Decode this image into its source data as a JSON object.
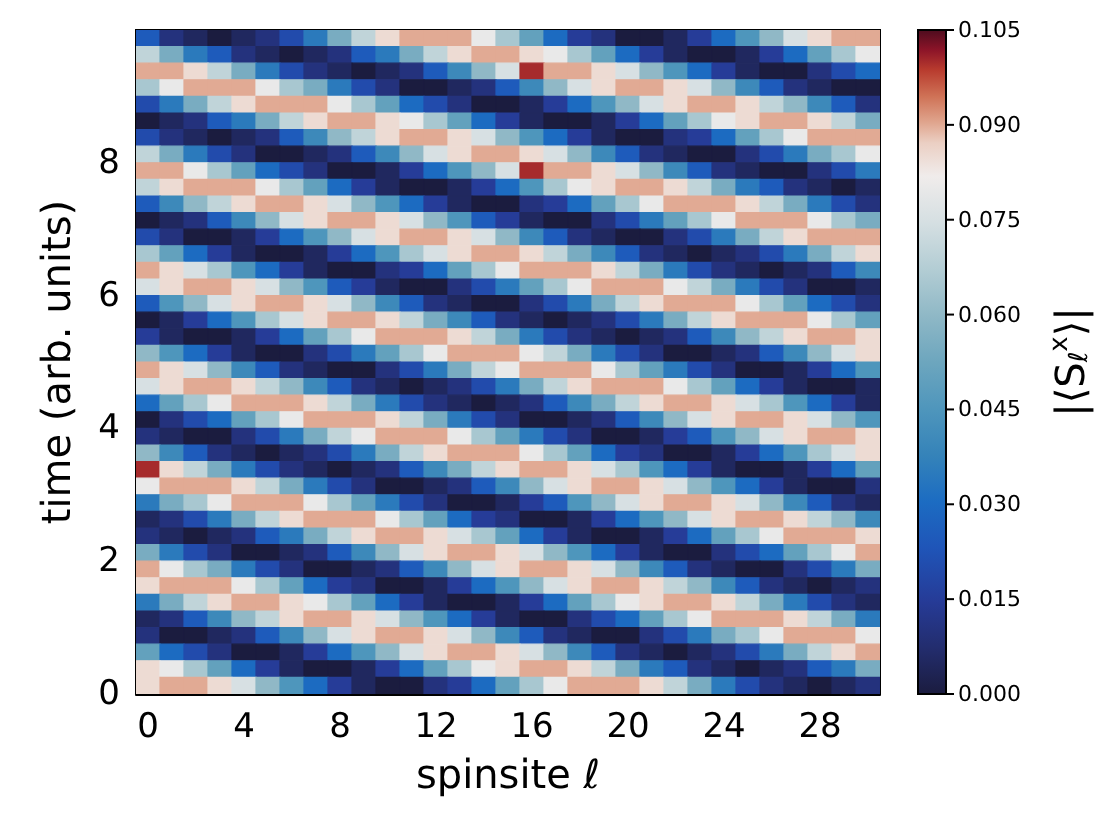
{
  "chart_data": {
    "type": "heatmap",
    "xlabel": "spinsite ℓ",
    "ylabel": "time (arb. units)",
    "clabel": "|⟨S$_{ℓ}$$^{x}$⟩|",
    "x": [
      0,
      1,
      2,
      3,
      4,
      5,
      6,
      7,
      8,
      9,
      10,
      11,
      12,
      13,
      14,
      15,
      16,
      17,
      18,
      19,
      20,
      21,
      22,
      23,
      24,
      25,
      26,
      27,
      28,
      29,
      30
    ],
    "y": [
      9.875,
      9.625,
      9.375,
      9.125,
      8.875,
      8.625,
      8.375,
      8.125,
      7.875,
      7.625,
      7.375,
      7.125,
      6.875,
      6.625,
      6.375,
      6.125,
      5.875,
      5.625,
      5.375,
      5.125,
      4.875,
      4.625,
      4.375,
      4.125,
      3.875,
      3.625,
      3.375,
      3.125,
      2.875,
      2.625,
      2.375,
      2.125,
      1.875,
      1.625,
      1.375,
      1.125,
      0.875,
      0.625,
      0.375,
      0.125
    ],
    "xlim": [
      -0.5,
      30.5
    ],
    "ylim": [
      0,
      10
    ],
    "xticks": [
      0,
      4,
      8,
      12,
      16,
      20,
      24,
      28
    ],
    "yticks": [
      0,
      2,
      4,
      6,
      8
    ],
    "clim": [
      0,
      0.105
    ],
    "cticks": [
      {
        "value": 0,
        "label": "0.000"
      },
      {
        "value": 0.015,
        "label": "0.015"
      },
      {
        "value": 0.03,
        "label": "0.030"
      },
      {
        "value": 0.045,
        "label": "0.045"
      },
      {
        "value": 0.06,
        "label": "0.060"
      },
      {
        "value": 0.075,
        "label": "0.075"
      },
      {
        "value": 0.09,
        "label": "0.090"
      },
      {
        "value": 0.105,
        "label": "0.105"
      }
    ],
    "cells": [
      [
        0.025,
        0.01,
        0.005,
        0,
        0.005,
        0.01,
        0.02,
        0.035,
        0.055,
        0.07,
        0.085,
        0.09,
        0.09,
        0.09,
        0.08,
        0.065,
        0.05,
        0.03,
        0.015,
        0.01,
        0,
        0,
        0.005,
        0.015,
        0.03,
        0.045,
        0.06,
        0.075,
        0.085,
        0.09,
        0.09
      ],
      [
        0.07,
        0.055,
        0.035,
        0.025,
        0.01,
        0.005,
        0,
        0.005,
        0.01,
        0.025,
        0.035,
        0.055,
        0.07,
        0.085,
        0.09,
        0.09,
        0.085,
        0.08,
        0.065,
        0.05,
        0.03,
        0.015,
        0.005,
        0,
        0,
        0.005,
        0.015,
        0.03,
        0.05,
        0.065,
        0.08
      ],
      [
        0.09,
        0.09,
        0.085,
        0.07,
        0.055,
        0.035,
        0.02,
        0.01,
        0.005,
        0,
        0.005,
        0.01,
        0.025,
        0.04,
        0.06,
        0.075,
        0.1,
        0.09,
        0.09,
        0.085,
        0.075,
        0.06,
        0.045,
        0.03,
        0.015,
        0.005,
        0,
        0,
        0.01,
        0.02,
        0.03
      ],
      [
        0.065,
        0.08,
        0.09,
        0.09,
        0.09,
        0.08,
        0.065,
        0.055,
        0.035,
        0.02,
        0.01,
        0,
        0,
        0.005,
        0.01,
        0.025,
        0.04,
        0.06,
        0.075,
        0.085,
        0.09,
        0.09,
        0.085,
        0.075,
        0.06,
        0.04,
        0.025,
        0.01,
        0.005,
        0,
        0
      ],
      [
        0.02,
        0.035,
        0.055,
        0.07,
        0.085,
        0.09,
        0.09,
        0.09,
        0.08,
        0.065,
        0.05,
        0.03,
        0.02,
        0.01,
        0,
        0,
        0.005,
        0.015,
        0.03,
        0.045,
        0.06,
        0.075,
        0.085,
        0.09,
        0.09,
        0.085,
        0.07,
        0.06,
        0.04,
        0.025,
        0.01
      ],
      [
        0,
        0.005,
        0.01,
        0.025,
        0.035,
        0.055,
        0.07,
        0.085,
        0.09,
        0.09,
        0.085,
        0.08,
        0.065,
        0.05,
        0.03,
        0.015,
        0.005,
        0,
        0,
        0.005,
        0.015,
        0.03,
        0.05,
        0.065,
        0.08,
        0.085,
        0.09,
        0.09,
        0.085,
        0.07,
        0.055
      ],
      [
        0.02,
        0.01,
        0.005,
        0,
        0.005,
        0.01,
        0.025,
        0.04,
        0.06,
        0.07,
        0.085,
        0.09,
        0.09,
        0.085,
        0.075,
        0.06,
        0.045,
        0.03,
        0.015,
        0.005,
        0,
        0,
        0.01,
        0.015,
        0.03,
        0.05,
        0.065,
        0.08,
        0.09,
        0.09,
        0.09
      ],
      [
        0.07,
        0.055,
        0.035,
        0.02,
        0.01,
        0,
        0,
        0.005,
        0.01,
        0.025,
        0.04,
        0.06,
        0.075,
        0.085,
        0.09,
        0.09,
        0.085,
        0.075,
        0.06,
        0.04,
        0.025,
        0.01,
        0.005,
        0,
        0,
        0.01,
        0.02,
        0.035,
        0.055,
        0.065,
        0.08
      ],
      [
        0.09,
        0.09,
        0.08,
        0.065,
        0.05,
        0.03,
        0.02,
        0.01,
        0,
        0,
        0.005,
        0.015,
        0.03,
        0.045,
        0.06,
        0.075,
        0.1,
        0.09,
        0.09,
        0.085,
        0.075,
        0.06,
        0.04,
        0.025,
        0.01,
        0.005,
        0,
        0,
        0.01,
        0.02,
        0.035
      ],
      [
        0.07,
        0.085,
        0.09,
        0.09,
        0.09,
        0.08,
        0.065,
        0.05,
        0.03,
        0.015,
        0.005,
        0,
        0,
        0.005,
        0.015,
        0.03,
        0.045,
        0.065,
        0.08,
        0.085,
        0.09,
        0.09,
        0.085,
        0.07,
        0.055,
        0.035,
        0.025,
        0.01,
        0.005,
        0,
        0.005
      ],
      [
        0.025,
        0.04,
        0.06,
        0.07,
        0.085,
        0.09,
        0.09,
        0.085,
        0.075,
        0.06,
        0.045,
        0.03,
        0.015,
        0.005,
        0,
        0,
        0.01,
        0.015,
        0.03,
        0.05,
        0.065,
        0.08,
        0.09,
        0.09,
        0.09,
        0.085,
        0.07,
        0.055,
        0.035,
        0.02,
        0.01
      ],
      [
        0,
        0.005,
        0.01,
        0.025,
        0.04,
        0.06,
        0.075,
        0.085,
        0.09,
        0.09,
        0.085,
        0.075,
        0.06,
        0.045,
        0.025,
        0.015,
        0.005,
        0,
        0,
        0.01,
        0.02,
        0.035,
        0.05,
        0.065,
        0.08,
        0.09,
        0.09,
        0.09,
        0.08,
        0.065,
        0.055
      ],
      [
        0.02,
        0.01,
        0,
        0,
        0.005,
        0.015,
        0.03,
        0.045,
        0.06,
        0.075,
        0.085,
        0.09,
        0.09,
        0.085,
        0.075,
        0.06,
        0.04,
        0.025,
        0.01,
        0.005,
        0,
        0,
        0.01,
        0.02,
        0.035,
        0.055,
        0.07,
        0.085,
        0.09,
        0.09,
        0.09
      ],
      [
        0.065,
        0.05,
        0.03,
        0.015,
        0.005,
        0,
        0,
        0.005,
        0.015,
        0.03,
        0.045,
        0.065,
        0.075,
        0.085,
        0.09,
        0.09,
        0.085,
        0.07,
        0.055,
        0.04,
        0.025,
        0.01,
        0.005,
        0,
        0.005,
        0.01,
        0.02,
        0.035,
        0.055,
        0.07,
        0.085
      ],
      [
        0.09,
        0.085,
        0.075,
        0.065,
        0.045,
        0.03,
        0.015,
        0.005,
        0,
        0,
        0.01,
        0.015,
        0.03,
        0.05,
        0.065,
        0.08,
        0.09,
        0.09,
        0.09,
        0.085,
        0.07,
        0.055,
        0.035,
        0.02,
        0.01,
        0.005,
        0,
        0.005,
        0.01,
        0.025,
        0.04
      ],
      [
        0.075,
        0.085,
        0.09,
        0.09,
        0.085,
        0.075,
        0.06,
        0.045,
        0.025,
        0.015,
        0.005,
        0,
        0,
        0.01,
        0.02,
        0.035,
        0.05,
        0.065,
        0.08,
        0.09,
        0.09,
        0.09,
        0.08,
        0.07,
        0.055,
        0.035,
        0.02,
        0.01,
        0,
        0,
        0.005
      ],
      [
        0.025,
        0.045,
        0.06,
        0.075,
        0.085,
        0.09,
        0.09,
        0.085,
        0.075,
        0.06,
        0.04,
        0.025,
        0.01,
        0.005,
        0,
        0,
        0.01,
        0.02,
        0.035,
        0.055,
        0.07,
        0.085,
        0.09,
        0.09,
        0.09,
        0.08,
        0.065,
        0.05,
        0.03,
        0.02,
        0.01
      ],
      [
        0,
        0.005,
        0.015,
        0.03,
        0.045,
        0.065,
        0.075,
        0.085,
        0.09,
        0.09,
        0.085,
        0.07,
        0.055,
        0.04,
        0.025,
        0.01,
        0.005,
        0,
        0.005,
        0.01,
        0.02,
        0.035,
        0.055,
        0.07,
        0.085,
        0.09,
        0.09,
        0.09,
        0.08,
        0.065,
        0.05
      ],
      [
        0.015,
        0.005,
        0,
        0,
        0.005,
        0.015,
        0.03,
        0.05,
        0.065,
        0.08,
        0.09,
        0.09,
        0.09,
        0.085,
        0.07,
        0.055,
        0.035,
        0.02,
        0.01,
        0.005,
        0,
        0.005,
        0.01,
        0.025,
        0.04,
        0.06,
        0.07,
        0.085,
        0.09,
        0.09,
        0.085
      ],
      [
        0.06,
        0.045,
        0.03,
        0.015,
        0.005,
        0,
        0,
        0.01,
        0.02,
        0.035,
        0.05,
        0.065,
        0.08,
        0.09,
        0.09,
        0.09,
        0.08,
        0.07,
        0.055,
        0.035,
        0.02,
        0.01,
        0,
        0,
        0.005,
        0.01,
        0.025,
        0.04,
        0.06,
        0.075,
        0.085
      ],
      [
        0.09,
        0.085,
        0.075,
        0.06,
        0.04,
        0.025,
        0.01,
        0.005,
        0,
        0,
        0.01,
        0.02,
        0.035,
        0.055,
        0.07,
        0.08,
        0.09,
        0.09,
        0.09,
        0.08,
        0.065,
        0.05,
        0.035,
        0.02,
        0.01,
        0,
        0,
        0.005,
        0.015,
        0.03,
        0.045
      ],
      [
        0.075,
        0.085,
        0.09,
        0.09,
        0.085,
        0.07,
        0.06,
        0.04,
        0.025,
        0.01,
        0.005,
        0,
        0.005,
        0.01,
        0.02,
        0.035,
        0.055,
        0.07,
        0.085,
        0.09,
        0.09,
        0.09,
        0.08,
        0.065,
        0.05,
        0.03,
        0.015,
        0.005,
        0,
        0,
        0.005
      ],
      [
        0.03,
        0.05,
        0.065,
        0.08,
        0.09,
        0.09,
        0.09,
        0.085,
        0.07,
        0.055,
        0.035,
        0.02,
        0.01,
        0.005,
        0,
        0.005,
        0.01,
        0.025,
        0.04,
        0.055,
        0.07,
        0.085,
        0.09,
        0.09,
        0.085,
        0.075,
        0.065,
        0.045,
        0.03,
        0.015,
        0.005
      ],
      [
        0,
        0.01,
        0.02,
        0.03,
        0.05,
        0.065,
        0.08,
        0.09,
        0.09,
        0.09,
        0.085,
        0.07,
        0.055,
        0.035,
        0.02,
        0.01,
        0,
        0,
        0.005,
        0.01,
        0.025,
        0.04,
        0.06,
        0.075,
        0.085,
        0.09,
        0.09,
        0.085,
        0.075,
        0.06,
        0.045
      ],
      [
        0.01,
        0.005,
        0,
        0,
        0.01,
        0.02,
        0.035,
        0.055,
        0.07,
        0.08,
        0.09,
        0.09,
        0.09,
        0.08,
        0.065,
        0.05,
        0.035,
        0.02,
        0.01,
        0,
        0,
        0.005,
        0.015,
        0.025,
        0.045,
        0.06,
        0.075,
        0.085,
        0.09,
        0.09,
        0.085
      ],
      [
        0.06,
        0.04,
        0.025,
        0.01,
        0.005,
        0,
        0.005,
        0.01,
        0.02,
        0.035,
        0.055,
        0.07,
        0.085,
        0.09,
        0.09,
        0.09,
        0.08,
        0.065,
        0.05,
        0.03,
        0.015,
        0.01,
        0,
        0,
        0.005,
        0.015,
        0.03,
        0.045,
        0.065,
        0.075,
        0.085
      ],
      [
        0.1,
        0.085,
        0.07,
        0.055,
        0.035,
        0.02,
        0.01,
        0.005,
        0,
        0.005,
        0.01,
        0.025,
        0.04,
        0.055,
        0.07,
        0.085,
        0.09,
        0.09,
        0.085,
        0.075,
        0.065,
        0.045,
        0.03,
        0.015,
        0.005,
        0,
        0,
        0.005,
        0.015,
        0.03,
        0.05
      ],
      [
        0.08,
        0.09,
        0.09,
        0.09,
        0.085,
        0.07,
        0.055,
        0.035,
        0.02,
        0.01,
        0,
        0,
        0.005,
        0.01,
        0.025,
        0.04,
        0.06,
        0.075,
        0.085,
        0.09,
        0.09,
        0.085,
        0.075,
        0.06,
        0.045,
        0.03,
        0.015,
        0.005,
        0,
        0,
        0.01
      ],
      [
        0.035,
        0.055,
        0.065,
        0.08,
        0.09,
        0.09,
        0.09,
        0.08,
        0.065,
        0.05,
        0.035,
        0.02,
        0.01,
        0,
        0,
        0.005,
        0.015,
        0.025,
        0.045,
        0.06,
        0.075,
        0.085,
        0.09,
        0.09,
        0.085,
        0.075,
        0.06,
        0.04,
        0.025,
        0.01,
        0.005
      ],
      [
        0.005,
        0.01,
        0.02,
        0.035,
        0.055,
        0.07,
        0.085,
        0.09,
        0.09,
        0.09,
        0.08,
        0.065,
        0.05,
        0.03,
        0.015,
        0.01,
        0,
        0,
        0.005,
        0.015,
        0.03,
        0.045,
        0.06,
        0.075,
        0.085,
        0.09,
        0.09,
        0.085,
        0.07,
        0.06,
        0.04
      ],
      [
        0.01,
        0.005,
        0,
        0.005,
        0.01,
        0.025,
        0.035,
        0.055,
        0.07,
        0.085,
        0.09,
        0.09,
        0.085,
        0.075,
        0.065,
        0.05,
        0.03,
        0.015,
        0.005,
        0,
        0,
        0.005,
        0.015,
        0.03,
        0.05,
        0.065,
        0.08,
        0.09,
        0.09,
        0.09,
        0.085
      ],
      [
        0.055,
        0.035,
        0.02,
        0.01,
        0,
        0,
        0.005,
        0.01,
        0.025,
        0.04,
        0.06,
        0.075,
        0.085,
        0.09,
        0.09,
        0.085,
        0.075,
        0.06,
        0.045,
        0.03,
        0.015,
        0.005,
        0,
        0,
        0.01,
        0.02,
        0.03,
        0.05,
        0.065,
        0.08,
        0.09
      ],
      [
        0.09,
        0.08,
        0.065,
        0.055,
        0.035,
        0.02,
        0.01,
        0,
        0,
        0.005,
        0.01,
        0.025,
        0.04,
        0.06,
        0.075,
        0.085,
        0.09,
        0.09,
        0.085,
        0.075,
        0.06,
        0.04,
        0.025,
        0.01,
        0.005,
        0,
        0,
        0.01,
        0.02,
        0.035,
        0.055
      ],
      [
        0.085,
        0.09,
        0.09,
        0.09,
        0.08,
        0.065,
        0.05,
        0.03,
        0.015,
        0.01,
        0,
        0,
        0.005,
        0.015,
        0.03,
        0.045,
        0.06,
        0.075,
        0.085,
        0.09,
        0.09,
        0.085,
        0.07,
        0.06,
        0.04,
        0.025,
        0.01,
        0.005,
        0,
        0.005,
        0.01
      ],
      [
        0.035,
        0.055,
        0.07,
        0.085,
        0.09,
        0.09,
        0.085,
        0.08,
        0.065,
        0.05,
        0.03,
        0.015,
        0.005,
        0,
        0,
        0.005,
        0.015,
        0.03,
        0.05,
        0.065,
        0.08,
        0.085,
        0.09,
        0.09,
        0.085,
        0.07,
        0.055,
        0.035,
        0.02,
        0.01,
        0.005
      ],
      [
        0.005,
        0.01,
        0.025,
        0.04,
        0.06,
        0.07,
        0.085,
        0.09,
        0.09,
        0.085,
        0.075,
        0.06,
        0.045,
        0.03,
        0.015,
        0.005,
        0,
        0,
        0.01,
        0.02,
        0.03,
        0.05,
        0.065,
        0.08,
        0.09,
        0.09,
        0.09,
        0.085,
        0.07,
        0.055,
        0.035
      ],
      [
        0.01,
        0,
        0,
        0.005,
        0.01,
        0.025,
        0.04,
        0.06,
        0.075,
        0.085,
        0.09,
        0.09,
        0.085,
        0.075,
        0.06,
        0.04,
        0.025,
        0.01,
        0.005,
        0,
        0,
        0.01,
        0.02,
        0.035,
        0.055,
        0.065,
        0.08,
        0.09,
        0.09,
        0.09,
        0.08
      ],
      [
        0.05,
        0.03,
        0.02,
        0.01,
        0,
        0,
        0.005,
        0.015,
        0.03,
        0.045,
        0.06,
        0.075,
        0.085,
        0.09,
        0.09,
        0.085,
        0.075,
        0.06,
        0.04,
        0.025,
        0.01,
        0.005,
        0,
        0.005,
        0.01,
        0.02,
        0.035,
        0.055,
        0.07,
        0.085,
        0.09
      ],
      [
        0.085,
        0.08,
        0.065,
        0.05,
        0.03,
        0.015,
        0.005,
        0,
        0,
        0.005,
        0.015,
        0.03,
        0.05,
        0.065,
        0.08,
        0.085,
        0.09,
        0.09,
        0.085,
        0.07,
        0.055,
        0.035,
        0.025,
        0.01,
        0.005,
        0,
        0.005,
        0.01,
        0.025,
        0.035,
        0.055
      ],
      [
        0.085,
        0.09,
        0.09,
        0.085,
        0.075,
        0.06,
        0.045,
        0.03,
        0.015,
        0.005,
        0,
        0,
        0.01,
        0.015,
        0.03,
        0.05,
        0.065,
        0.08,
        0.09,
        0.09,
        0.09,
        0.085,
        0.07,
        0.055,
        0.035,
        0.02,
        0.01,
        0.005,
        0,
        0.005,
        0.01
      ]
    ]
  }
}
